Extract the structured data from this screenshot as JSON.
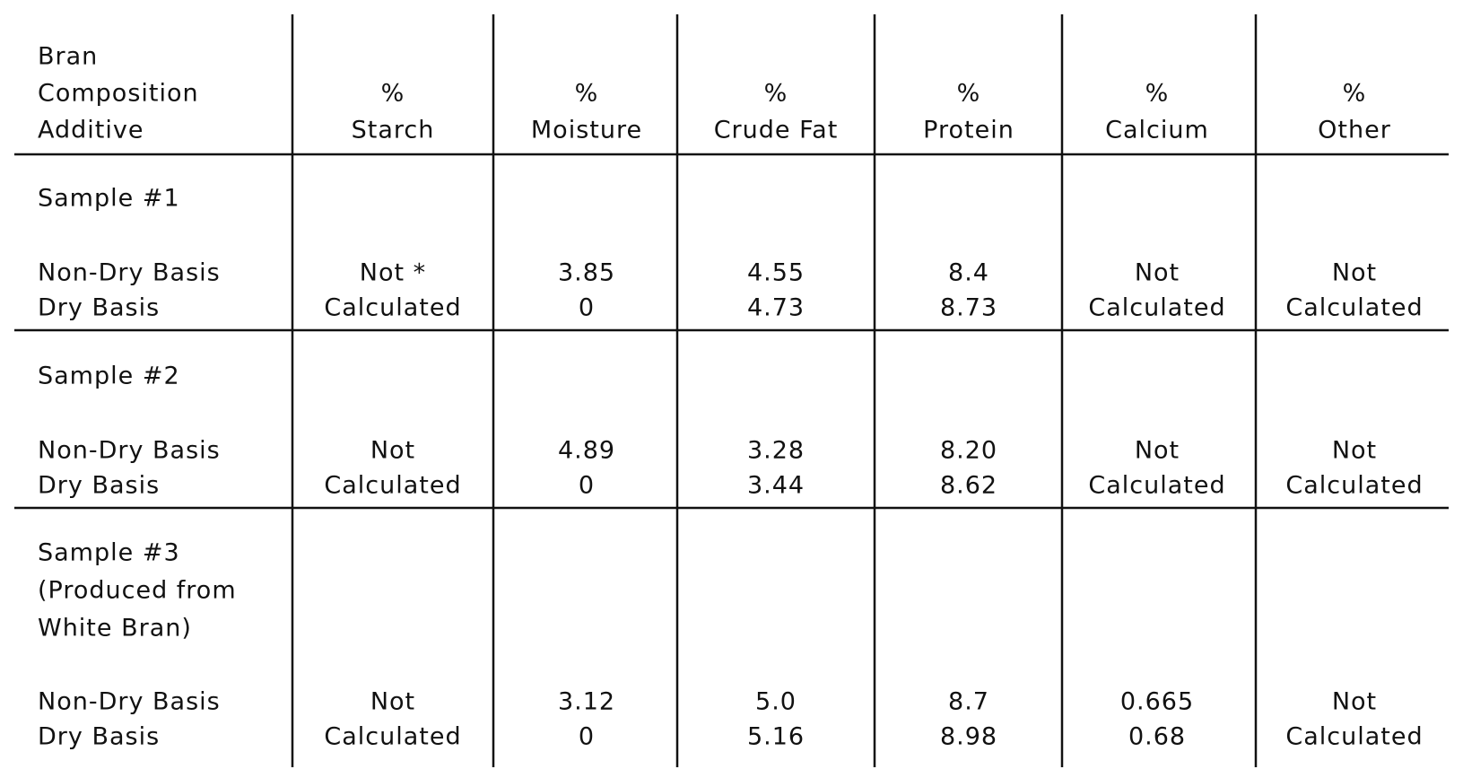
{
  "table": {
    "columns": [
      [
        "Bran",
        "Composition",
        "Additive"
      ],
      [
        "%",
        "Starch"
      ],
      [
        "%",
        "Moisture"
      ],
      [
        "%",
        "Crude Fat"
      ],
      [
        "%",
        "Protein"
      ],
      [
        "%",
        "Calcium"
      ],
      [
        "%",
        "Other"
      ]
    ],
    "samples": [
      {
        "label": [
          "Sample #1"
        ],
        "cells": [
          [
            "Non-Dry Basis",
            "Dry Basis"
          ],
          [
            "Not *",
            "Calculated"
          ],
          [
            "3.85",
            "0"
          ],
          [
            "4.55",
            "4.73"
          ],
          [
            "8.4",
            "8.73"
          ],
          [
            "Not",
            "Calculated"
          ],
          [
            "Not",
            "Calculated"
          ]
        ]
      },
      {
        "label": [
          "Sample #2"
        ],
        "cells": [
          [
            "Non-Dry Basis",
            "Dry Basis"
          ],
          [
            "Not",
            "Calculated"
          ],
          [
            "4.89",
            "0"
          ],
          [
            "3.28",
            "3.44"
          ],
          [
            "8.20",
            "8.62"
          ],
          [
            "Not",
            "Calculated"
          ],
          [
            "Not",
            "Calculated"
          ]
        ]
      },
      {
        "label": [
          "Sample #3",
          "(Produced from",
          "White Bran)"
        ],
        "cells": [
          [
            "Non-Dry Basis",
            "Dry Basis"
          ],
          [
            "Not",
            "Calculated"
          ],
          [
            "3.12",
            "0"
          ],
          [
            "5.0",
            "5.16"
          ],
          [
            "8.7",
            "8.98"
          ],
          [
            "0.665",
            "0.68"
          ],
          [
            "Not",
            "Calculated"
          ]
        ]
      }
    ]
  }
}
